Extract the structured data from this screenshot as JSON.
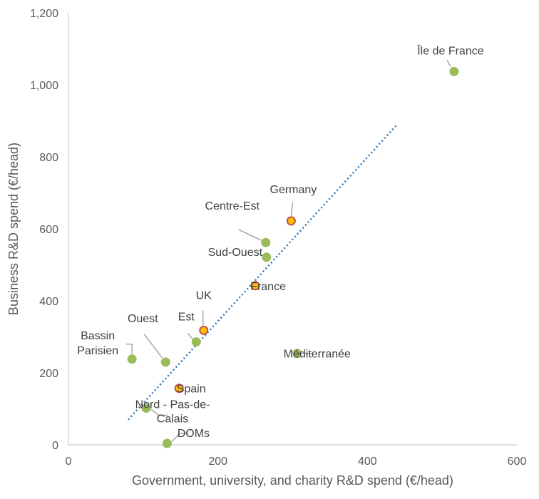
{
  "chart_data": {
    "type": "scatter",
    "xlabel": "Government, university, and charity R&D spend (€/head)",
    "ylabel": "Business R&D spend (€/head)",
    "xlim": [
      0,
      600
    ],
    "ylim": [
      0,
      1200
    ],
    "x_ticks": [
      "0",
      "200",
      "400",
      "600"
    ],
    "y_ticks": [
      "0",
      "200",
      "400",
      "600",
      "800",
      "1,000",
      "1,200"
    ],
    "grid": false,
    "legend": "none",
    "colors": {
      "french_region": "#9BBB59",
      "country_fill": "#FFC000",
      "country_edge": "#C0504D",
      "trendline": "#2E75B6"
    },
    "trendline": {
      "style": "dotted",
      "x": [
        80,
        440
      ],
      "y": [
        70,
        890
      ]
    },
    "points": [
      {
        "label": "Île de France",
        "x": 516,
        "y": 1037,
        "group": "french_region"
      },
      {
        "label": "Germany",
        "x": 298,
        "y": 622,
        "group": "country"
      },
      {
        "label": "Centre-Est",
        "x": 264,
        "y": 562,
        "group": "french_region"
      },
      {
        "label": "Sud-Ouest",
        "x": 265,
        "y": 521,
        "group": "french_region"
      },
      {
        "label": "France",
        "x": 250,
        "y": 442,
        "group": "country"
      },
      {
        "label": "UK",
        "x": 181,
        "y": 318,
        "group": "country"
      },
      {
        "label": "Est",
        "x": 171,
        "y": 286,
        "group": "french_region"
      },
      {
        "label": "Ouest",
        "x": 130,
        "y": 230,
        "group": "french_region"
      },
      {
        "label": "Bassin Parisien",
        "x": 85,
        "y": 238,
        "group": "french_region"
      },
      {
        "label": "Méditerranée",
        "x": 306,
        "y": 254,
        "group": "french_region"
      },
      {
        "label": "Spain",
        "x": 148,
        "y": 157,
        "group": "country"
      },
      {
        "label": "Nord - Pas-de-Calais",
        "x": 104,
        "y": 102,
        "group": "french_region"
      },
      {
        "label": "DOMs",
        "x": 132,
        "y": 4,
        "group": "french_region"
      }
    ]
  }
}
